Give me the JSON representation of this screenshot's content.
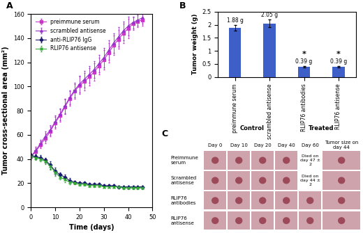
{
  "chart_data": [
    {
      "type": "line",
      "title": "A",
      "x_label": "Time (days)",
      "y_label": "Tumor cross-sectional area (mm²)",
      "x": [
        0,
        2,
        4,
        6,
        8,
        10,
        12,
        14,
        16,
        18,
        20,
        22,
        24,
        26,
        28,
        30,
        32,
        34,
        36,
        38,
        40,
        42,
        44,
        46
      ],
      "series": [
        {
          "name": "preimmune serum",
          "color": "#cc33cc",
          "marker": "square",
          "values": [
            42,
            46,
            52,
            57,
            63,
            70,
            76,
            83,
            90,
            96,
            101,
            104,
            108,
            112,
            117,
            122,
            128,
            134,
            139,
            144,
            148,
            152,
            154,
            155
          ],
          "errors": [
            2,
            3,
            3,
            4,
            4,
            5,
            5,
            6,
            6,
            6,
            7,
            7,
            7,
            7,
            7,
            8,
            8,
            8,
            8,
            8,
            8,
            5,
            5,
            5
          ]
        },
        {
          "name": "scrambled antisense",
          "color": "#9933cc",
          "marker": "triangle",
          "values": [
            42,
            47,
            53,
            59,
            64,
            71,
            77,
            84,
            91,
            97,
            102,
            106,
            110,
            114,
            119,
            124,
            130,
            136,
            141,
            146,
            150,
            153,
            155,
            157
          ],
          "errors": [
            2,
            3,
            3,
            4,
            4,
            5,
            5,
            6,
            6,
            6,
            7,
            7,
            7,
            7,
            7,
            8,
            8,
            8,
            8,
            8,
            8,
            5,
            5,
            5
          ]
        },
        {
          "name": "anti-RLIP76 IgG",
          "color": "#1a1a6e",
          "marker": "diamond",
          "values": [
            43,
            42,
            41,
            39,
            35,
            30,
            27,
            25,
            22,
            21,
            20,
            20,
            19,
            19,
            19,
            18,
            18,
            18,
            17,
            17,
            17,
            17,
            17,
            17
          ],
          "errors": [
            2,
            2,
            2,
            2,
            3,
            3,
            2,
            2,
            2,
            1,
            1,
            1,
            1,
            1,
            1,
            1,
            1,
            1,
            1,
            1,
            1,
            1,
            1,
            1
          ]
        },
        {
          "name": "RLIP76 antisense",
          "color": "#33aa33",
          "marker": "cross",
          "values": [
            42,
            41,
            40,
            38,
            34,
            29,
            25,
            23,
            21,
            20,
            19,
            19,
            18,
            18,
            18,
            17,
            17,
            17,
            17,
            16,
            16,
            16,
            16,
            16
          ],
          "errors": [
            2,
            2,
            2,
            2,
            3,
            3,
            2,
            2,
            2,
            1,
            1,
            1,
            1,
            1,
            1,
            1,
            1,
            1,
            1,
            1,
            1,
            1,
            1,
            1
          ]
        }
      ],
      "xlim": [
        0,
        50
      ],
      "xticks": [
        0,
        10,
        20,
        30,
        40,
        50
      ],
      "ylim": [
        0,
        160
      ],
      "yticks": [
        0,
        20,
        40,
        60,
        80,
        100,
        120,
        140,
        160
      ],
      "legend": "upper left"
    },
    {
      "type": "bar",
      "title": "B",
      "y_label": "Tumor weight (g)",
      "categories": [
        "preimmune serum",
        "scrambled antisense",
        "RLIP76 antibodies",
        "RLIP76 antisense"
      ],
      "values": [
        1.88,
        2.05,
        0.39,
        0.39
      ],
      "errors": [
        0.1,
        0.15,
        0.03,
        0.03
      ],
      "value_labels": [
        "1.88 g",
        "2.05 g",
        "0.39 g",
        "0.39 g"
      ],
      "data_labels": true,
      "significance": [
        null,
        null,
        "*",
        "*"
      ],
      "groups": [
        {
          "name": "Control",
          "members": [
            "preimmune serum",
            "scrambled antisense"
          ]
        },
        {
          "name": "Treated",
          "members": [
            "RLIP76 antibodies",
            "RLIP76 antisense"
          ]
        }
      ],
      "color": "#3f5fc8",
      "ylim": [
        0,
        2.5
      ],
      "yticks": [
        0,
        0.5,
        1,
        1.5,
        2,
        2.5
      ]
    }
  ],
  "photo_grid": {
    "title": "C",
    "columns": [
      "Day 0",
      "Day 10",
      "Day 20",
      "Day 40",
      "Day 60",
      "Tumor size on day 44"
    ],
    "rows": [
      {
        "label": "Preimmune serum",
        "cells": [
          null,
          null,
          null,
          null,
          "Died on day 47 ± 2",
          null
        ]
      },
      {
        "label": "Scrambled antisense",
        "cells": [
          null,
          null,
          null,
          null,
          "Died on day 44 ± 2",
          null
        ]
      },
      {
        "label": "RLIP76 antibodies",
        "cells": [
          null,
          null,
          null,
          null,
          null,
          null
        ]
      },
      {
        "label": "RLIP76 antisense",
        "cells": [
          null,
          null,
          null,
          null,
          null,
          null
        ]
      }
    ]
  }
}
